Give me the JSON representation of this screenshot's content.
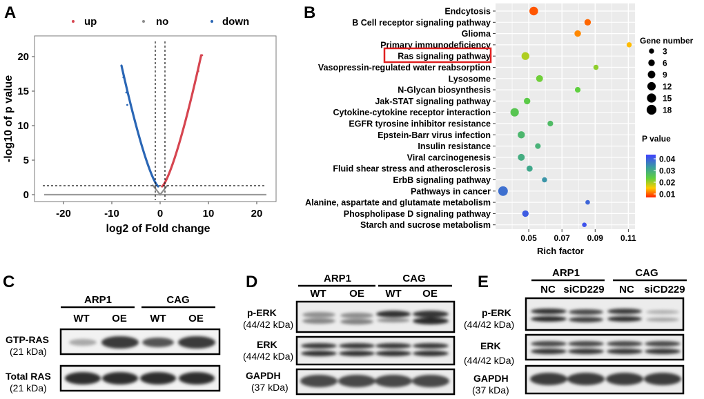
{
  "panels": {
    "a": "A",
    "b": "B",
    "c": "C",
    "d": "D",
    "e": "E"
  },
  "chart_data": [
    {
      "type": "scatter",
      "panel": "A",
      "title": "",
      "xlabel": "log2 of Fold change",
      "ylabel": "-log10 of p value",
      "xlim": [
        -26,
        24
      ],
      "ylim": [
        -1,
        23
      ],
      "xticks": [
        -20,
        -10,
        0,
        10,
        20
      ],
      "yticks": [
        0,
        5,
        10,
        15,
        20
      ],
      "legend": {
        "placement": "top",
        "entries": [
          {
            "name": "up",
            "color": "#d64550"
          },
          {
            "name": "no",
            "color": "#8c8c8c"
          },
          {
            "name": "down",
            "color": "#2a66b5"
          }
        ]
      },
      "thresholds": {
        "vertical": [
          -1,
          1
        ],
        "horizontal": 1.3
      },
      "down_arm": {
        "x_range": [
          -8,
          -0.4
        ],
        "max_y": 18.7
      },
      "up_arm": {
        "x_range": [
          0.4,
          8.5
        ],
        "max_y": 20.2
      },
      "baseline": {
        "x_range": [
          -24,
          22
        ],
        "y": 0
      }
    },
    {
      "type": "scatter",
      "panel": "B",
      "title": "",
      "xlabel": "Rich factor",
      "ylabel": "",
      "xlim": [
        0.03,
        0.114
      ],
      "xticks": [
        0.05,
        0.07,
        0.09,
        0.11
      ],
      "grid": true,
      "categories": [
        "Endcytosis",
        "B Cell receptor signaling pathway",
        "Glioma",
        "Primary immunodeficiency",
        "Ras signaling pathway",
        "Vasopressin-regulated water reabsorption",
        "Lysosome",
        "N-Glycan biosynthesis",
        "Jak-STAT signaling pathway",
        "Cytokine-cytokine receptor interaction",
        "EGFR tyrosine inhibitor resistance",
        "Epstein-Barr virus infection",
        "Insulin resistance",
        "Viral carcinogenesis",
        "Fluid shear stress and atherosclerosis",
        "ErbB signaling pathway",
        "Pathways in cancer",
        "Alanine, aspartate and glutamate metabolism",
        "Phospholipase D signaling pathway",
        "Starch and sucrose metabolism"
      ],
      "highlighted": "Ras signaling pathway",
      "points": [
        {
          "rich": 0.053,
          "genes": 13,
          "p": 0.008
        },
        {
          "rich": 0.0855,
          "genes": 6,
          "p": 0.009
        },
        {
          "rich": 0.0795,
          "genes": 6,
          "p": 0.011
        },
        {
          "rich": 0.1105,
          "genes": 3,
          "p": 0.014
        },
        {
          "rich": 0.048,
          "genes": 10,
          "p": 0.02
        },
        {
          "rich": 0.0905,
          "genes": 3,
          "p": 0.022
        },
        {
          "rich": 0.0565,
          "genes": 7,
          "p": 0.024
        },
        {
          "rich": 0.0795,
          "genes": 4,
          "p": 0.025
        },
        {
          "rich": 0.049,
          "genes": 6,
          "p": 0.026
        },
        {
          "rich": 0.0415,
          "genes": 12,
          "p": 0.027
        },
        {
          "rich": 0.063,
          "genes": 4,
          "p": 0.029
        },
        {
          "rich": 0.0455,
          "genes": 8,
          "p": 0.03
        },
        {
          "rich": 0.0555,
          "genes": 4,
          "p": 0.031
        },
        {
          "rich": 0.0455,
          "genes": 7,
          "p": 0.032
        },
        {
          "rich": 0.0505,
          "genes": 5,
          "p": 0.033
        },
        {
          "rich": 0.0595,
          "genes": 3,
          "p": 0.036
        },
        {
          "rich": 0.0345,
          "genes": 17,
          "p": 0.04
        },
        {
          "rich": 0.0855,
          "genes": 2,
          "p": 0.041
        },
        {
          "rich": 0.048,
          "genes": 6,
          "p": 0.042
        },
        {
          "rich": 0.0835,
          "genes": 2,
          "p": 0.043
        }
      ],
      "size_legend": {
        "title": "Gene number",
        "values": [
          3,
          6,
          9,
          12,
          15,
          18
        ]
      },
      "color_legend": {
        "title": "P value",
        "ticks": [
          "0.04",
          "0.03",
          "0.02",
          "0.01"
        ],
        "colors": [
          "#4040ff",
          "#3a9e9e",
          "#5fcf3f",
          "#ffcc00",
          "#ff2200"
        ]
      }
    }
  ],
  "blots": {
    "c": {
      "groups": [
        "ARP1",
        "CAG"
      ],
      "lanes": [
        "WT",
        "OE",
        "WT",
        "OE"
      ],
      "rows": [
        {
          "name": "GTP-RAS",
          "size": "(21 kDa)"
        },
        {
          "name": "Total RAS",
          "size": "(21 kDa)"
        }
      ]
    },
    "d": {
      "groups": [
        "ARP1",
        "CAG"
      ],
      "lanes": [
        "WT",
        "OE",
        "WT",
        "OE"
      ],
      "rows": [
        {
          "name": "p-ERK",
          "size": "(44/42 kDa)"
        },
        {
          "name": "ERK",
          "size": "(44/42 kDa)"
        },
        {
          "name": "GAPDH",
          "size": "(37 kDa)"
        }
      ]
    },
    "e": {
      "groups": [
        "ARP1",
        "CAG"
      ],
      "lanes": [
        "NC",
        "siCD229",
        "NC",
        "siCD229"
      ],
      "rows": [
        {
          "name": "p-ERK",
          "size": "(44/42 kDa)"
        },
        {
          "name": "ERK",
          "size": "(44/42 kDa)"
        },
        {
          "name": "GAPDH",
          "size": "(37 kDa)"
        }
      ]
    }
  }
}
